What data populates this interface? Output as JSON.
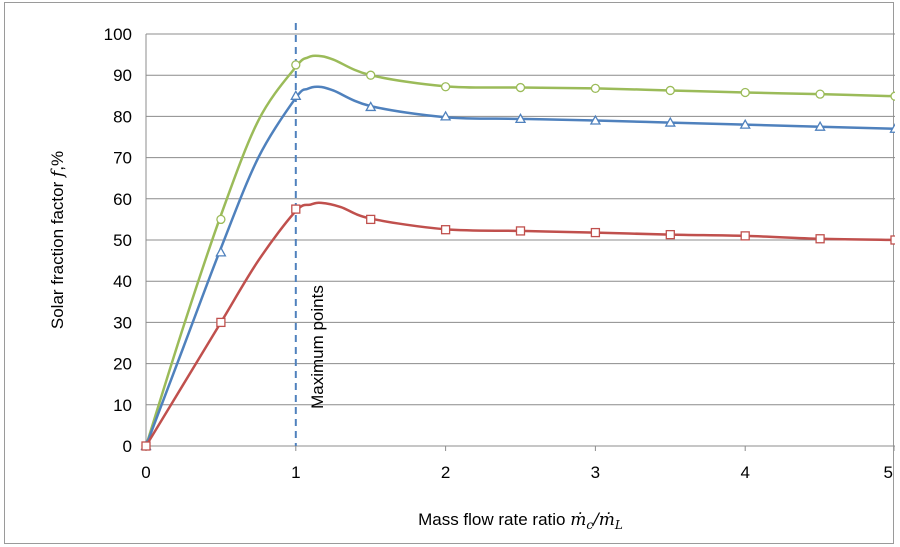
{
  "chart_data": {
    "type": "line",
    "title": "",
    "xlabel": "Mass flow rate ratio ṁ_c/ṁ_L",
    "xlabel_text": "Mass flow rate ratio ",
    "xlabel_math": "ṁ",
    "xlabel_math_sub1": "c",
    "xlabel_math_slash": "/ṁ",
    "xlabel_math_sub2": "L",
    "ylabel": "Solar fraction factor f,%",
    "ylabel_text": "Solar fraction factor ",
    "ylabel_math": "f",
    "ylabel_unit": ",%",
    "xlim": [
      0,
      5
    ],
    "ylim": [
      0,
      100
    ],
    "xticks": [
      0,
      1,
      2,
      3,
      4,
      5
    ],
    "yticks": [
      0,
      10,
      20,
      30,
      40,
      50,
      60,
      70,
      80,
      90,
      100
    ],
    "grid": "horizontal",
    "legend": "none",
    "annotation": {
      "text": "Maximum points",
      "x": 1
    },
    "series": [
      {
        "color": "#9bbb59",
        "marker": "circle",
        "x": [
          0,
          0.5,
          1,
          1.5,
          2,
          2.5,
          3,
          3.5,
          4,
          4.5,
          5
        ],
        "y": [
          0,
          55,
          92.5,
          90,
          87.2,
          87,
          86.8,
          86.3,
          85.8,
          85.4,
          84.9
        ],
        "curve_x": [
          0,
          0.25,
          0.5,
          0.75,
          1,
          1.08,
          1.15,
          1.25,
          1.5,
          2,
          2.5,
          3,
          3.5,
          4,
          4.5,
          5
        ],
        "curve_y": [
          0,
          29,
          56,
          79,
          92,
          94.3,
          94.7,
          93.8,
          90,
          87.3,
          87,
          86.8,
          86.3,
          85.8,
          85.4,
          84.9
        ]
      },
      {
        "color": "#4f81bd",
        "marker": "triangle",
        "x": [
          0,
          0.5,
          1,
          1.5,
          2,
          2.5,
          3,
          3.5,
          4,
          4.5,
          5
        ],
        "y": [
          0,
          47,
          85,
          82.3,
          80,
          79.4,
          79,
          78.5,
          78,
          77.5,
          77
        ],
        "curve_x": [
          0,
          0.25,
          0.5,
          0.75,
          1,
          1.08,
          1.15,
          1.25,
          1.5,
          2,
          2.5,
          3,
          3.5,
          4,
          4.5,
          5
        ],
        "curve_y": [
          0,
          24,
          48,
          70,
          84.5,
          86.7,
          87.2,
          86.3,
          82.5,
          79.8,
          79.4,
          79,
          78.5,
          78,
          77.5,
          77
        ]
      },
      {
        "color": "#c0504d",
        "marker": "square",
        "x": [
          0,
          0.5,
          1,
          1.5,
          2,
          2.5,
          3,
          3.5,
          4,
          4.5,
          5
        ],
        "y": [
          0,
          30,
          57.5,
          55,
          52.5,
          52.2,
          51.8,
          51.3,
          51,
          50.3,
          50
        ],
        "curve_x": [
          0,
          0.25,
          0.5,
          0.75,
          1,
          1.1,
          1.17,
          1.3,
          1.5,
          2,
          2.5,
          3,
          3.5,
          4,
          4.5,
          5
        ],
        "curve_y": [
          0,
          15,
          30,
          45,
          57,
          58.6,
          59,
          58,
          55.2,
          52.6,
          52.2,
          51.8,
          51.3,
          51,
          50.3,
          50
        ]
      }
    ]
  }
}
